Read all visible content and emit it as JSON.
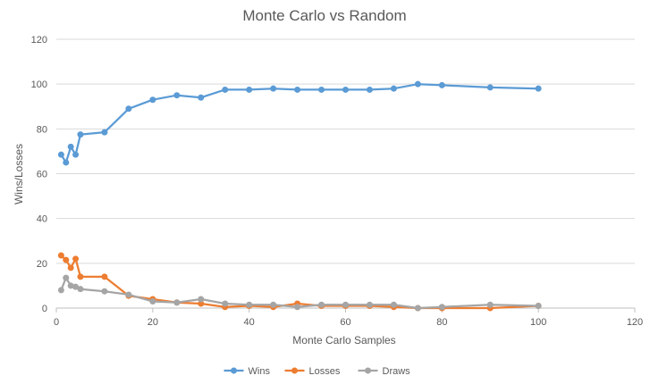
{
  "chart_data": {
    "type": "line",
    "title": "Monte Carlo vs Random",
    "xlabel": "Monte Carlo Samples",
    "ylabel": "Wins/Losses",
    "xlim": [
      0,
      120
    ],
    "ylim": [
      0,
      120
    ],
    "x_ticks": [
      0,
      20,
      40,
      60,
      80,
      100,
      120
    ],
    "y_ticks": [
      0,
      20,
      40,
      60,
      80,
      100,
      120
    ],
    "grid": "horizontal",
    "legend_position": "bottom",
    "x": [
      1,
      2,
      3,
      4,
      5,
      10,
      15,
      20,
      25,
      30,
      35,
      40,
      45,
      50,
      55,
      60,
      65,
      70,
      75,
      80,
      90,
      100
    ],
    "series": [
      {
        "name": "Wins",
        "color": "#5B9BD5",
        "values": [
          68.5,
          65,
          72,
          68.5,
          77.5,
          78.5,
          89,
          93,
          95,
          94,
          97.5,
          97.5,
          98,
          97.5,
          97.5,
          97.5,
          97.5,
          98,
          100,
          99.5,
          98.5,
          98
        ]
      },
      {
        "name": "Losses",
        "color": "#ED7D31",
        "values": [
          23.5,
          21.5,
          18,
          22,
          14,
          14,
          5.5,
          4,
          2.5,
          2,
          0.5,
          1,
          0.5,
          2,
          1,
          1,
          1,
          0.5,
          0,
          0,
          0,
          1
        ]
      },
      {
        "name": "Draws",
        "color": "#A5A5A5",
        "values": [
          8,
          13.5,
          10,
          9.5,
          8.5,
          7.5,
          6,
          3,
          2.5,
          4,
          2,
          1.5,
          1.5,
          0.5,
          1.5,
          1.5,
          1.5,
          1.5,
          0,
          0.5,
          1.5,
          1
        ]
      }
    ]
  }
}
